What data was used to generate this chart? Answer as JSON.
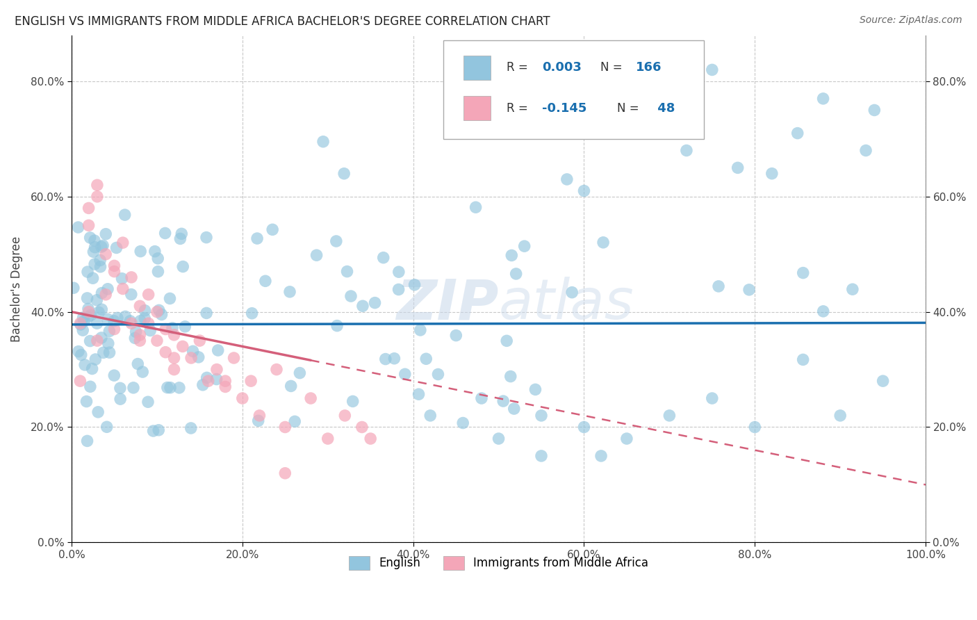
{
  "title": "ENGLISH VS IMMIGRANTS FROM MIDDLE AFRICA BACHELOR'S DEGREE CORRELATION CHART",
  "source": "Source: ZipAtlas.com",
  "ylabel": "Bachelor's Degree",
  "watermark": "ZIPatlas",
  "xlim": [
    0.0,
    1.0
  ],
  "ylim": [
    0.0,
    0.88
  ],
  "xtick_labels": [
    "0.0%",
    "20.0%",
    "40.0%",
    "60.0%",
    "80.0%",
    "100.0%"
  ],
  "ytick_labels": [
    "0.0%",
    "20.0%",
    "40.0%",
    "60.0%",
    "80.0%"
  ],
  "blue_color": "#92c5de",
  "pink_color": "#f4a6b8",
  "blue_line_color": "#1a6faf",
  "pink_line_color": "#d45f7a",
  "grid_color": "#c8c8c8",
  "background_color": "#ffffff",
  "title_fontsize": 12,
  "axis_fontsize": 11
}
